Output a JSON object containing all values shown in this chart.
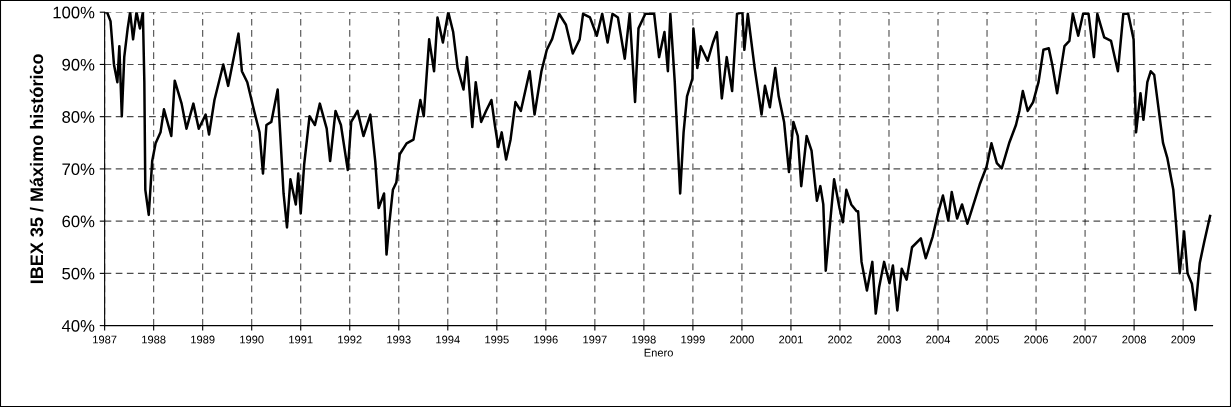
{
  "chart_data": {
    "type": "line",
    "ylabel": "IBEX 35 / Máximo histórico",
    "xlabel": "Enero",
    "xlim": [
      1987,
      2009.6
    ],
    "xticks": [
      1987,
      1988,
      1989,
      1990,
      1991,
      1992,
      1993,
      1994,
      1995,
      1996,
      1997,
      1998,
      1999,
      2000,
      2001,
      2002,
      2003,
      2004,
      2005,
      2006,
      2007,
      2008,
      2009
    ],
    "ylim": [
      40,
      100
    ],
    "yticks": [
      {
        "value": 40,
        "label": "40%"
      },
      {
        "value": 50,
        "label": "50%"
      },
      {
        "value": 60,
        "label": "60%"
      },
      {
        "value": 70,
        "label": "70%"
      },
      {
        "value": 80,
        "label": "80%"
      },
      {
        "value": 90,
        "label": "90%"
      },
      {
        "value": 100,
        "label": "100%"
      }
    ],
    "grid": true,
    "marker": "none",
    "line_style": "solid",
    "series": [
      {
        "color": "#000000",
        "x": [
          1987.0,
          1987.05,
          1987.12,
          1987.19,
          1987.26,
          1987.3,
          1987.35,
          1987.4,
          1987.47,
          1987.52,
          1987.58,
          1987.65,
          1987.72,
          1987.78,
          1987.81,
          1987.83,
          1987.9,
          1987.97,
          1988.04,
          1988.14,
          1988.21,
          1988.36,
          1988.43,
          1988.57,
          1988.67,
          1988.81,
          1988.92,
          1989.06,
          1989.13,
          1989.24,
          1989.42,
          1989.52,
          1989.73,
          1989.8,
          1989.91,
          1990.05,
          1990.16,
          1990.23,
          1990.3,
          1990.4,
          1990.53,
          1990.58,
          1990.65,
          1990.72,
          1990.79,
          1990.9,
          1990.95,
          1991.0,
          1991.07,
          1991.18,
          1991.29,
          1991.39,
          1991.53,
          1991.6,
          1991.71,
          1991.82,
          1991.96,
          1992.03,
          1992.16,
          1992.28,
          1992.42,
          1992.52,
          1992.59,
          1992.7,
          1992.75,
          1992.81,
          1992.88,
          1992.95,
          1993.02,
          1993.16,
          1993.3,
          1993.44,
          1993.51,
          1993.62,
          1993.72,
          1993.79,
          1993.9,
          1994.01,
          1994.11,
          1994.2,
          1994.32,
          1994.39,
          1994.5,
          1994.57,
          1994.68,
          1994.78,
          1994.89,
          1994.96,
          1995.03,
          1995.1,
          1995.19,
          1995.28,
          1995.38,
          1995.49,
          1995.67,
          1995.77,
          1995.91,
          1996.02,
          1996.13,
          1996.27,
          1996.41,
          1996.55,
          1996.69,
          1996.76,
          1996.9,
          1997.04,
          1997.15,
          1997.26,
          1997.36,
          1997.47,
          1997.61,
          1997.71,
          1997.82,
          1997.89,
          1998.03,
          1998.21,
          1998.31,
          1998.42,
          1998.49,
          1998.54,
          1998.63,
          1998.74,
          1998.81,
          1998.88,
          1998.99,
          1999.01,
          1999.09,
          1999.16,
          1999.3,
          1999.41,
          1999.49,
          1999.59,
          1999.69,
          1999.8,
          1999.9,
          2000.01,
          2000.05,
          2000.12,
          2000.26,
          2000.4,
          2000.47,
          2000.57,
          2000.68,
          2000.75,
          2000.86,
          2000.96,
          2001.05,
          2001.14,
          2001.21,
          2001.32,
          2001.42,
          2001.53,
          2001.6,
          2001.66,
          2001.71,
          2001.78,
          2001.88,
          2001.99,
          2002.06,
          2002.13,
          2002.23,
          2002.34,
          2002.37,
          2002.44,
          2002.55,
          2002.66,
          2002.73,
          2002.8,
          2002.9,
          2003.01,
          2003.08,
          2003.17,
          2003.26,
          2003.36,
          2003.47,
          2003.65,
          2003.75,
          2003.89,
          2004.0,
          2004.1,
          2004.21,
          2004.28,
          2004.39,
          2004.49,
          2004.6,
          2004.7,
          2004.85,
          2004.99,
          2005.09,
          2005.2,
          2005.3,
          2005.45,
          2005.59,
          2005.66,
          2005.73,
          2005.83,
          2005.94,
          2006.05,
          2006.15,
          2006.26,
          2006.33,
          2006.43,
          2006.58,
          2006.68,
          2006.75,
          2006.86,
          2006.96,
          2007.07,
          2007.18,
          2007.25,
          2007.39,
          2007.53,
          2007.67,
          2007.78,
          2007.88,
          2007.99,
          2008.04,
          2008.13,
          2008.19,
          2008.27,
          2008.34,
          2008.41,
          2008.52,
          2008.59,
          2008.68,
          2008.8,
          2008.86,
          2008.93,
          2009.02,
          2009.09,
          2009.18,
          2009.25,
          2009.34,
          2009.43,
          2009.55
        ],
        "values": [
          100,
          100,
          98.3,
          90.0,
          86.6,
          93.5,
          80.1,
          91.4,
          96.9,
          100,
          94.8,
          100,
          96.9,
          100,
          86.6,
          66.0,
          61.2,
          71.5,
          74.9,
          77.0,
          81.4,
          76.3,
          86.9,
          82.5,
          77.7,
          82.5,
          77.7,
          80.4,
          76.6,
          83.2,
          90.0,
          85.9,
          95.9,
          88.7,
          86.6,
          81.1,
          77.0,
          69.1,
          78.4,
          79.0,
          85.2,
          77.0,
          65.3,
          58.8,
          68.0,
          63.2,
          69.1,
          61.5,
          70.8,
          80.1,
          78.4,
          82.5,
          77.7,
          71.5,
          81.1,
          78.4,
          69.8,
          79.0,
          81.1,
          76.3,
          80.4,
          71.5,
          62.5,
          65.3,
          53.6,
          59.8,
          66.0,
          67.4,
          72.8,
          74.9,
          75.6,
          83.2,
          80.1,
          94.8,
          88.7,
          99.0,
          94.2,
          100,
          96.2,
          89.3,
          85.2,
          91.4,
          78.0,
          86.6,
          79.0,
          81.1,
          83.2,
          78.4,
          74.2,
          77.0,
          71.8,
          75.6,
          82.8,
          81.1,
          88.7,
          80.4,
          88.7,
          92.8,
          94.9,
          99.7,
          97.6,
          92.1,
          94.8,
          99.7,
          99.0,
          95.5,
          99.7,
          94.2,
          99.7,
          99.0,
          91.1,
          99.7,
          82.8,
          96.9,
          99.7,
          99.7,
          91.4,
          96.2,
          88.7,
          99.7,
          86.6,
          65.3,
          77.0,
          83.9,
          87.3,
          96.9,
          89.3,
          93.5,
          90.7,
          94.2,
          96.2,
          83.5,
          91.4,
          84.9,
          99.7,
          100,
          92.8,
          99.7,
          89.3,
          80.4,
          85.9,
          81.8,
          89.3,
          83.9,
          79.0,
          69.4,
          79.0,
          76.3,
          66.7,
          76.3,
          73.5,
          63.9,
          66.7,
          63.2,
          50.5,
          57.7,
          68.0,
          62.5,
          59.8,
          66.0,
          63.2,
          61.9,
          61.9,
          52.2,
          46.7,
          52.2,
          42.3,
          47.4,
          52.2,
          48.1,
          51.5,
          42.9,
          50.9,
          48.8,
          55.0,
          56.7,
          52.9,
          57.0,
          61.5,
          64.9,
          60.1,
          65.6,
          60.5,
          63.2,
          59.5,
          62.5,
          67.0,
          70.4,
          74.9,
          71.1,
          70.1,
          74.9,
          78.4,
          81.1,
          84.9,
          81.1,
          82.8,
          86.6,
          92.8,
          93.1,
          90.0,
          84.5,
          93.5,
          94.5,
          99.7,
          95.5,
          99.7,
          99.7,
          91.4,
          99.7,
          95.2,
          94.5,
          88.7,
          99.7,
          99.7,
          94.8,
          77.0,
          84.5,
          79.4,
          86.6,
          88.7,
          88,
          80,
          75,
          72,
          66,
          59,
          50,
          58,
          50,
          48,
          43,
          52,
          56,
          61
        ]
      }
    ]
  }
}
